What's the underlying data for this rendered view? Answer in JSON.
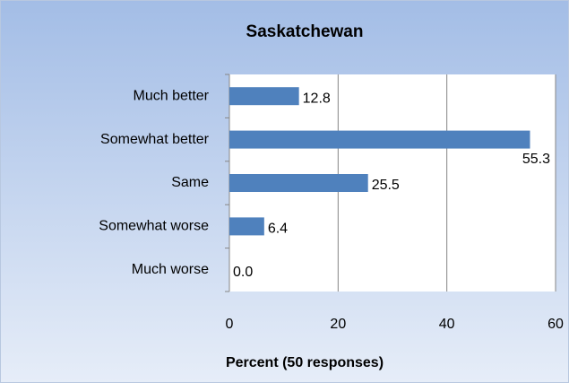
{
  "chart_data": {
    "type": "bar",
    "orientation": "horizontal",
    "title": "Saskatchewan",
    "xlabel": "Percent (50 responses)",
    "categories": [
      "Much better",
      "Somewhat better",
      "Same",
      "Somewhat worse",
      "Much worse"
    ],
    "values": [
      12.8,
      55.3,
      25.5,
      6.4,
      0.0
    ],
    "value_labels": [
      "12.8",
      "55.3",
      "25.5",
      "6.4",
      "0.0"
    ],
    "color": "#4f81bd",
    "xlim": [
      0,
      60
    ],
    "xticks": [
      0,
      20,
      40,
      60
    ],
    "grid": true
  }
}
